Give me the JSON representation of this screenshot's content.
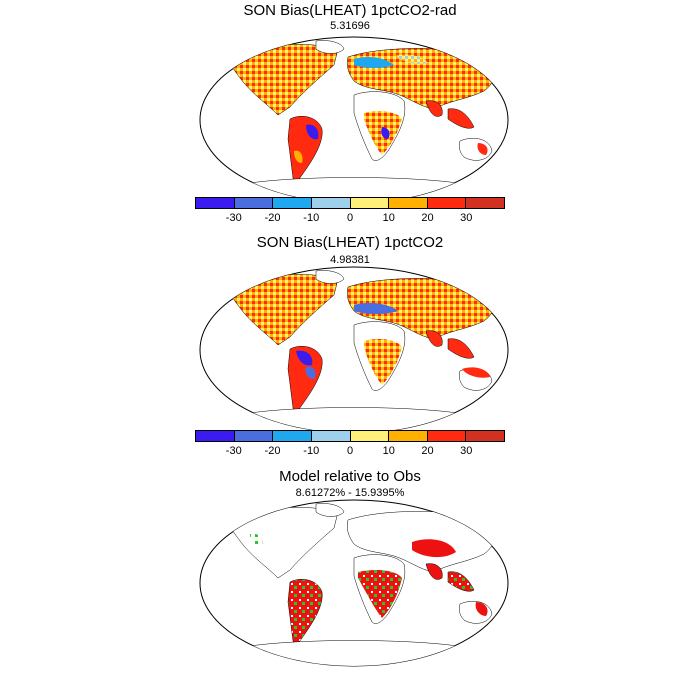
{
  "panels": [
    {
      "title": "SON Bias(LHEAT) 1pctCO2-rad",
      "subtitle": "5.31696"
    },
    {
      "title": "SON Bias(LHEAT) 1pctCO2",
      "subtitle": "4.98381"
    },
    {
      "title": "Model relative to Obs",
      "subtitle": "8.61272% - 15.9395%"
    }
  ],
  "colorbar": {
    "colors": [
      "#3b1cf0",
      "#4a6ee0",
      "#1fa8f0",
      "#9ed0ec",
      "#fff07a",
      "#ffb000",
      "#ff2a10",
      "#d23020"
    ],
    "tick_labels": [
      "-30",
      "-20",
      "-10",
      "0",
      "10",
      "20",
      "30"
    ]
  },
  "legend_colors": {
    "better": "#22cc22",
    "worse": "#ee1111"
  }
}
